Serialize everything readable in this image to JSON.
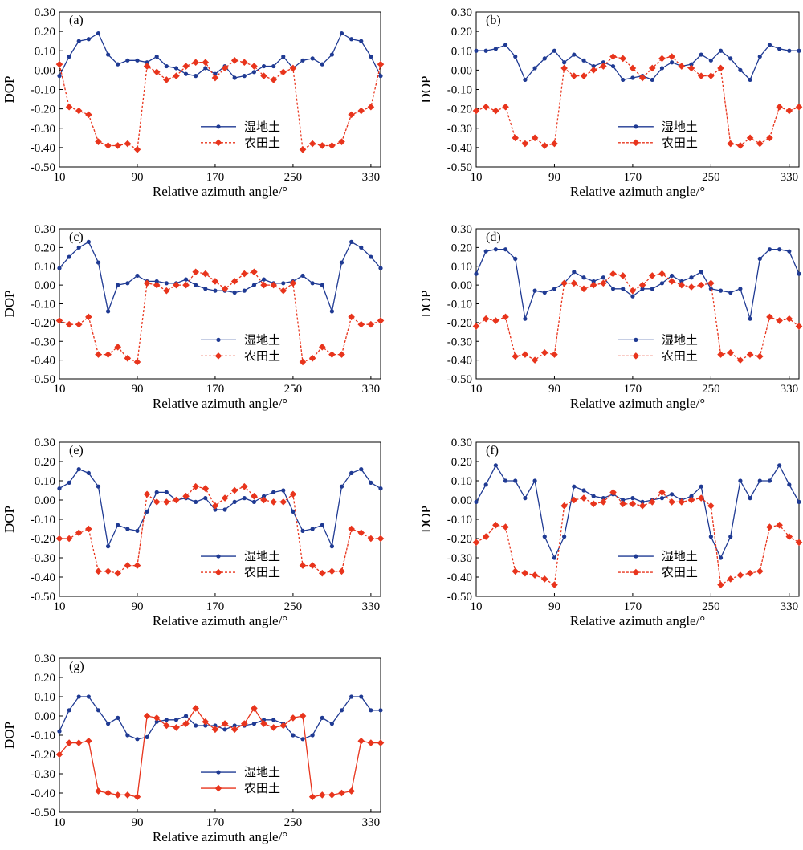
{
  "figure": {
    "xlabel": "Relative azimuth angle/°",
    "ylabel": "DOP",
    "legend": [
      "湿地土",
      "农田土"
    ]
  },
  "colors": {
    "wetland": "#1f3a93",
    "farmland": "#e8341c"
  },
  "chart_data": [
    {
      "type": "line",
      "panel": "(a)",
      "xlabel": "Relative azimuth angle/°",
      "ylabel": "DOP",
      "xlim": [
        10,
        340
      ],
      "ylim": [
        -0.5,
        0.3
      ],
      "xticks": [
        10,
        90,
        170,
        250,
        330
      ],
      "yticks": [
        "0.30",
        "0.20",
        "0.10",
        "0.00",
        "-0.10",
        "-0.20",
        "-0.30",
        "-0.40",
        "-0.50"
      ],
      "legend_position": "bottom-center",
      "x": [
        10,
        20,
        30,
        40,
        50,
        60,
        70,
        80,
        90,
        100,
        110,
        120,
        130,
        140,
        150,
        160,
        170,
        180,
        190,
        200,
        210,
        220,
        230,
        240,
        250,
        260,
        270,
        280,
        290,
        300,
        310,
        320,
        330,
        340
      ],
      "series": [
        {
          "name": "湿地土",
          "style": "solid",
          "marker": "circle",
          "values": [
            -0.03,
            0.07,
            0.15,
            0.16,
            0.19,
            0.08,
            0.03,
            0.05,
            0.05,
            0.04,
            0.07,
            0.02,
            0.01,
            -0.02,
            -0.03,
            0.01,
            -0.02,
            0.02,
            -0.04,
            -0.03,
            -0.01,
            0.02,
            0.02,
            0.07,
            0.01,
            0.05,
            0.06,
            0.03,
            0.08,
            0.19,
            0.16,
            0.15,
            0.07,
            -0.03
          ]
        },
        {
          "name": "农田土",
          "style": "dashed",
          "marker": "diamond",
          "values": [
            0.03,
            -0.19,
            -0.21,
            -0.23,
            -0.37,
            -0.39,
            -0.39,
            -0.38,
            -0.41,
            0.02,
            -0.01,
            -0.05,
            -0.03,
            0.02,
            0.04,
            0.04,
            -0.04,
            0.01,
            0.05,
            0.04,
            0.02,
            -0.03,
            -0.05,
            -0.01,
            0.01,
            -0.41,
            -0.38,
            -0.39,
            -0.39,
            -0.37,
            -0.23,
            -0.21,
            -0.19,
            0.03
          ]
        }
      ]
    },
    {
      "type": "line",
      "panel": "(b)",
      "xlabel": "Relative azimuth angle/°",
      "ylabel": "DOP",
      "xlim": [
        10,
        340
      ],
      "ylim": [
        -0.5,
        0.3
      ],
      "xticks": [
        10,
        90,
        170,
        250,
        330
      ],
      "yticks": [
        "0.30",
        "0.20",
        "0.10",
        "0.00",
        "-0.10",
        "-0.20",
        "-0.30",
        "-0.40",
        "-0.50"
      ],
      "legend_position": "bottom-center",
      "x": [
        10,
        20,
        30,
        40,
        50,
        60,
        70,
        80,
        90,
        100,
        110,
        120,
        130,
        140,
        150,
        160,
        170,
        180,
        190,
        200,
        210,
        220,
        230,
        240,
        250,
        260,
        270,
        280,
        290,
        300,
        310,
        320,
        330,
        340
      ],
      "series": [
        {
          "name": "湿地土",
          "style": "solid",
          "marker": "circle",
          "values": [
            0.1,
            0.1,
            0.11,
            0.13,
            0.07,
            -0.05,
            0.01,
            0.06,
            0.1,
            0.04,
            0.08,
            0.05,
            0.02,
            0.04,
            0.02,
            -0.05,
            -0.04,
            -0.03,
            -0.05,
            0.01,
            0.04,
            0.02,
            0.03,
            0.08,
            0.05,
            0.1,
            0.06,
            0.0,
            -0.05,
            0.07,
            0.13,
            0.11,
            0.1,
            0.1
          ]
        },
        {
          "name": "农田土",
          "style": "dashed",
          "marker": "diamond",
          "values": [
            -0.21,
            -0.19,
            -0.21,
            -0.19,
            -0.35,
            -0.38,
            -0.35,
            -0.39,
            -0.38,
            0.01,
            -0.03,
            -0.03,
            0.0,
            0.02,
            0.07,
            0.06,
            0.01,
            -0.04,
            0.01,
            0.06,
            0.07,
            0.02,
            0.01,
            -0.03,
            -0.03,
            0.01,
            -0.38,
            -0.39,
            -0.35,
            -0.38,
            -0.35,
            -0.19,
            -0.21,
            -0.19
          ]
        }
      ]
    },
    {
      "type": "line",
      "panel": "(c)",
      "xlabel": "Relative azimuth angle/°",
      "ylabel": "DOP",
      "xlim": [
        10,
        340
      ],
      "ylim": [
        -0.5,
        0.3
      ],
      "xticks": [
        10,
        90,
        170,
        250,
        330
      ],
      "yticks": [
        "0.30",
        "0.20",
        "0.10",
        "0.00",
        "-0.10",
        "-0.20",
        "-0.30",
        "-0.40",
        "-0.50"
      ],
      "legend_position": "bottom-center",
      "x": [
        10,
        20,
        30,
        40,
        50,
        60,
        70,
        80,
        90,
        100,
        110,
        120,
        130,
        140,
        150,
        160,
        170,
        180,
        190,
        200,
        210,
        220,
        230,
        240,
        250,
        260,
        270,
        280,
        290,
        300,
        310,
        320,
        330,
        340
      ],
      "series": [
        {
          "name": "湿地土",
          "style": "solid",
          "marker": "circle",
          "values": [
            0.09,
            0.15,
            0.2,
            0.23,
            0.12,
            -0.14,
            0.0,
            0.01,
            0.05,
            0.02,
            0.02,
            0.01,
            0.01,
            0.03,
            0.0,
            -0.02,
            -0.03,
            -0.03,
            -0.04,
            -0.03,
            0.0,
            0.03,
            0.01,
            0.01,
            0.02,
            0.05,
            0.01,
            0.0,
            -0.14,
            0.12,
            0.23,
            0.2,
            0.15,
            0.09
          ]
        },
        {
          "name": "农田土",
          "style": "dashed",
          "marker": "diamond",
          "values": [
            -0.19,
            -0.21,
            -0.21,
            -0.17,
            -0.37,
            -0.37,
            -0.33,
            -0.39,
            -0.41,
            0.01,
            0.0,
            -0.03,
            0.0,
            0.0,
            0.07,
            0.06,
            0.02,
            -0.02,
            0.02,
            0.06,
            0.07,
            0.0,
            0.0,
            -0.03,
            0.01,
            -0.41,
            -0.39,
            -0.33,
            -0.37,
            -0.37,
            -0.17,
            -0.21,
            -0.21,
            -0.19
          ]
        }
      ]
    },
    {
      "type": "line",
      "panel": "(d)",
      "xlabel": "Relative azimuth angle/°",
      "ylabel": "DOP",
      "xlim": [
        10,
        340
      ],
      "ylim": [
        -0.5,
        0.3
      ],
      "xticks": [
        10,
        90,
        170,
        250,
        330
      ],
      "yticks": [
        "0.30",
        "0.20",
        "0.10",
        "0.00",
        "-0.10",
        "-0.20",
        "-0.30",
        "-0.40",
        "-0.50"
      ],
      "legend_position": "bottom-center",
      "x": [
        10,
        20,
        30,
        40,
        50,
        60,
        70,
        80,
        90,
        100,
        110,
        120,
        130,
        140,
        150,
        160,
        170,
        180,
        190,
        200,
        210,
        220,
        230,
        240,
        250,
        260,
        270,
        280,
        290,
        300,
        310,
        320,
        330,
        340
      ],
      "series": [
        {
          "name": "湿地土",
          "style": "solid",
          "marker": "circle",
          "values": [
            0.06,
            0.18,
            0.19,
            0.19,
            0.14,
            -0.18,
            -0.03,
            -0.04,
            -0.02,
            0.01,
            0.07,
            0.04,
            0.02,
            0.04,
            -0.02,
            -0.02,
            -0.06,
            -0.02,
            -0.02,
            0.01,
            0.05,
            0.02,
            0.04,
            0.07,
            -0.02,
            -0.03,
            -0.04,
            -0.02,
            -0.18,
            0.14,
            0.19,
            0.19,
            0.18,
            0.06
          ]
        },
        {
          "name": "农田土",
          "style": "dashed",
          "marker": "diamond",
          "values": [
            -0.22,
            -0.18,
            -0.19,
            -0.17,
            -0.38,
            -0.37,
            -0.4,
            -0.36,
            -0.37,
            0.01,
            0.01,
            -0.02,
            0.0,
            0.01,
            0.06,
            0.05,
            -0.03,
            0.0,
            0.05,
            0.06,
            0.02,
            0.0,
            -0.01,
            0.0,
            0.01,
            -0.37,
            -0.36,
            -0.4,
            -0.37,
            -0.38,
            -0.17,
            -0.19,
            -0.18,
            -0.22
          ]
        }
      ]
    },
    {
      "type": "line",
      "panel": "(e)",
      "xlabel": "Relative azimuth angle/°",
      "ylabel": "DOP",
      "xlim": [
        10,
        340
      ],
      "ylim": [
        -0.5,
        0.3
      ],
      "xticks": [
        10,
        90,
        170,
        250,
        330
      ],
      "yticks": [
        "0.30",
        "0.20",
        "0.10",
        "0.00",
        "-0.10",
        "-0.20",
        "-0.30",
        "-0.40",
        "-0.50"
      ],
      "legend_position": "bottom-center",
      "x": [
        10,
        20,
        30,
        40,
        50,
        60,
        70,
        80,
        90,
        100,
        110,
        120,
        130,
        140,
        150,
        160,
        170,
        180,
        190,
        200,
        210,
        220,
        230,
        240,
        250,
        260,
        270,
        280,
        290,
        300,
        310,
        320,
        330,
        340
      ],
      "series": [
        {
          "name": "湿地土",
          "style": "solid",
          "marker": "circle",
          "values": [
            0.06,
            0.09,
            0.16,
            0.14,
            0.07,
            -0.24,
            -0.13,
            -0.15,
            -0.16,
            -0.06,
            0.04,
            0.04,
            0.0,
            0.01,
            -0.01,
            0.01,
            -0.05,
            -0.05,
            -0.01,
            0.01,
            -0.01,
            0.02,
            0.04,
            0.05,
            -0.06,
            -0.16,
            -0.15,
            -0.13,
            -0.24,
            0.07,
            0.14,
            0.16,
            0.09,
            0.06
          ]
        },
        {
          "name": "农田土",
          "style": "dashed",
          "marker": "diamond",
          "values": [
            -0.2,
            -0.2,
            -0.17,
            -0.15,
            -0.37,
            -0.37,
            -0.38,
            -0.34,
            -0.34,
            0.03,
            -0.01,
            -0.01,
            0.0,
            0.02,
            0.07,
            0.06,
            -0.03,
            0.01,
            0.05,
            0.07,
            0.02,
            0.0,
            -0.01,
            -0.01,
            0.03,
            -0.34,
            -0.34,
            -0.38,
            -0.37,
            -0.37,
            -0.15,
            -0.17,
            -0.2,
            -0.2
          ]
        }
      ]
    },
    {
      "type": "line",
      "panel": "(f)",
      "xlabel": "Relative azimuth angle/°",
      "ylabel": "DOP",
      "xlim": [
        10,
        340
      ],
      "ylim": [
        -0.5,
        0.3
      ],
      "xticks": [
        10,
        90,
        170,
        250,
        330
      ],
      "yticks": [
        "0.30",
        "0.20",
        "0.10",
        "0.00",
        "-0.10",
        "-0.20",
        "-0.30",
        "-0.40",
        "-0.50"
      ],
      "legend_position": "bottom-center",
      "x": [
        10,
        20,
        30,
        40,
        50,
        60,
        70,
        80,
        90,
        100,
        110,
        120,
        130,
        140,
        150,
        160,
        170,
        180,
        190,
        200,
        210,
        220,
        230,
        240,
        250,
        260,
        270,
        280,
        290,
        300,
        310,
        320,
        330,
        340
      ],
      "series": [
        {
          "name": "湿地土",
          "style": "solid",
          "marker": "circle",
          "values": [
            -0.01,
            0.08,
            0.18,
            0.1,
            0.1,
            0.01,
            0.1,
            -0.19,
            -0.3,
            -0.19,
            0.07,
            0.05,
            0.02,
            0.01,
            0.03,
            0.0,
            0.01,
            -0.01,
            0.0,
            0.01,
            0.03,
            0.0,
            0.02,
            0.07,
            -0.19,
            -0.3,
            -0.19,
            0.1,
            0.01,
            0.1,
            0.1,
            0.18,
            0.08,
            -0.01
          ]
        },
        {
          "name": "农田土",
          "style": "dashed",
          "marker": "diamond",
          "values": [
            -0.22,
            -0.19,
            -0.13,
            -0.14,
            -0.37,
            -0.38,
            -0.39,
            -0.41,
            -0.44,
            -0.03,
            0.0,
            0.01,
            -0.02,
            -0.01,
            0.04,
            -0.02,
            -0.02,
            -0.03,
            -0.01,
            0.04,
            -0.01,
            -0.01,
            0.0,
            0.01,
            -0.03,
            -0.44,
            -0.41,
            -0.39,
            -0.38,
            -0.37,
            -0.14,
            -0.13,
            -0.19,
            -0.22
          ]
        }
      ]
    },
    {
      "type": "line",
      "panel": "(g)",
      "xlabel": "Relative azimuth angle/°",
      "ylabel": "DOP",
      "xlim": [
        10,
        340
      ],
      "ylim": [
        -0.5,
        0.3
      ],
      "xticks": [
        10,
        90,
        170,
        250,
        330
      ],
      "yticks": [
        "0.30",
        "0.20",
        "0.10",
        "0.00",
        "-0.10",
        "-0.20",
        "-0.30",
        "-0.40",
        "-0.50"
      ],
      "legend_position": "bottom-center",
      "x": [
        10,
        20,
        30,
        40,
        50,
        60,
        70,
        80,
        90,
        100,
        110,
        120,
        130,
        140,
        150,
        160,
        170,
        180,
        190,
        200,
        210,
        220,
        230,
        240,
        250,
        260,
        270,
        280,
        290,
        300,
        310,
        320,
        330,
        340
      ],
      "series": [
        {
          "name": "湿地土",
          "style": "solid",
          "marker": "circle",
          "values": [
            -0.08,
            0.03,
            0.1,
            0.1,
            0.03,
            -0.04,
            -0.01,
            -0.1,
            -0.12,
            -0.11,
            -0.03,
            -0.02,
            -0.02,
            0.0,
            -0.05,
            -0.05,
            -0.05,
            -0.07,
            -0.05,
            -0.05,
            -0.04,
            -0.02,
            -0.02,
            -0.04,
            -0.1,
            -0.12,
            -0.1,
            -0.01,
            -0.04,
            0.03,
            0.1,
            0.1,
            0.03,
            0.03
          ]
        },
        {
          "name": "农田土",
          "style": "solid",
          "marker": "diamond",
          "values": [
            -0.2,
            -0.14,
            -0.14,
            -0.13,
            -0.39,
            -0.4,
            -0.41,
            -0.41,
            -0.42,
            0.0,
            -0.01,
            -0.05,
            -0.06,
            -0.04,
            0.04,
            -0.03,
            -0.07,
            -0.04,
            -0.07,
            -0.04,
            0.04,
            -0.04,
            -0.06,
            -0.05,
            -0.01,
            0.0,
            -0.42,
            -0.41,
            -0.41,
            -0.4,
            -0.39,
            -0.13,
            -0.14,
            -0.14
          ]
        }
      ]
    }
  ]
}
